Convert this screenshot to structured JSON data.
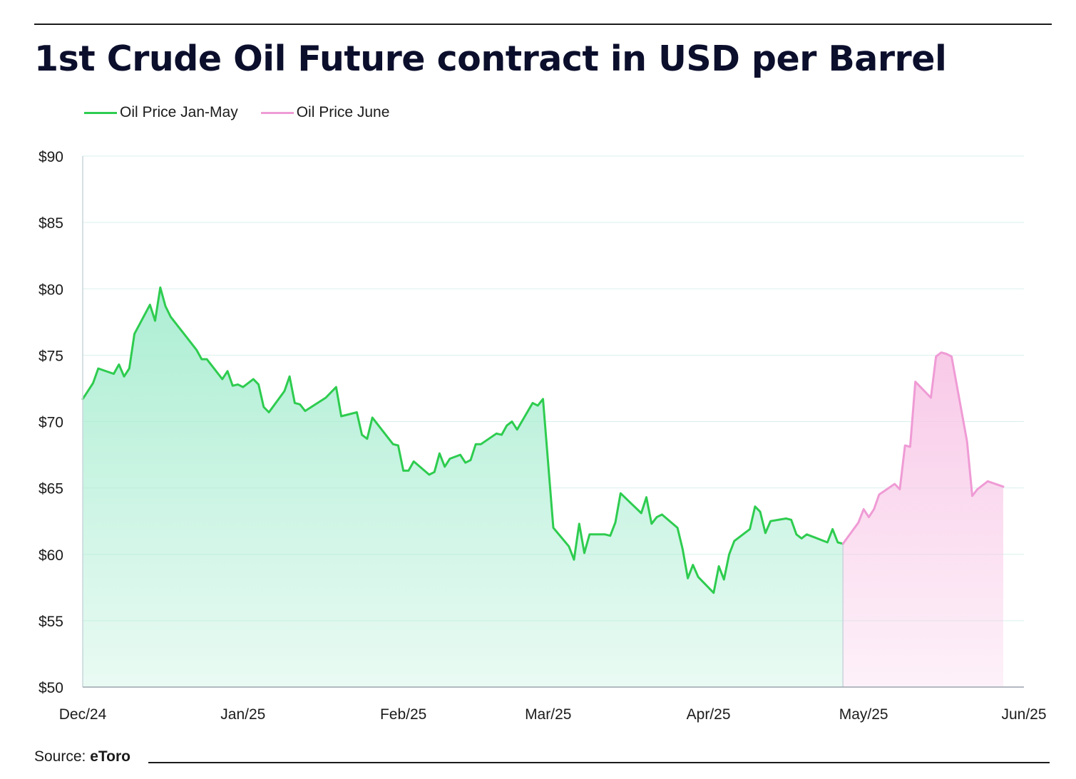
{
  "chart_data": {
    "type": "area",
    "title": "1st Crude Oil Future contract in USD per Barrel",
    "xlabel": "",
    "ylabel": "",
    "ylim": [
      50,
      90
    ],
    "y_ticks": [
      50,
      55,
      60,
      65,
      70,
      75,
      80,
      85,
      90
    ],
    "y_tick_labels": [
      "$50",
      "$55",
      "$60",
      "$65",
      "$70",
      "$75",
      "$80",
      "$85",
      "$90"
    ],
    "x_tick_labels": [
      "Dec/24",
      "Jan/25",
      "Feb/25",
      "Mar/25",
      "Apr/25",
      "May/25",
      "Jun/25"
    ],
    "x_range": [
      "2024-12-01",
      "2025-06-01"
    ],
    "grid": "horizontal",
    "legend_position": "top-left",
    "series": [
      {
        "name": "Oil Price Jan-May",
        "color": "#2ecc4f",
        "fill_color": "#a8edd1",
        "points": [
          [
            "2024-12-01",
            71.7
          ],
          [
            "2024-12-03",
            72.9
          ],
          [
            "2024-12-04",
            74.0
          ],
          [
            "2024-12-07",
            73.6
          ],
          [
            "2024-12-08",
            74.3
          ],
          [
            "2024-12-09",
            73.4
          ],
          [
            "2024-12-10",
            74.0
          ],
          [
            "2024-12-11",
            76.6
          ],
          [
            "2024-12-14",
            78.8
          ],
          [
            "2024-12-15",
            77.6
          ],
          [
            "2024-12-16",
            80.1
          ],
          [
            "2024-12-17",
            78.7
          ],
          [
            "2024-12-18",
            77.9
          ],
          [
            "2024-12-23",
            75.4
          ],
          [
            "2024-12-24",
            74.7
          ],
          [
            "2024-12-25",
            74.7
          ],
          [
            "2024-12-28",
            73.2
          ],
          [
            "2024-12-29",
            73.8
          ],
          [
            "2024-12-30",
            72.7
          ],
          [
            "2024-12-31",
            72.8
          ],
          [
            "2025-01-01",
            72.6
          ],
          [
            "2025-01-03",
            73.2
          ],
          [
            "2025-01-04",
            72.8
          ],
          [
            "2025-01-05",
            71.1
          ],
          [
            "2025-01-06",
            70.7
          ],
          [
            "2025-01-09",
            72.3
          ],
          [
            "2025-01-10",
            73.4
          ],
          [
            "2025-01-11",
            71.4
          ],
          [
            "2025-01-12",
            71.3
          ],
          [
            "2025-01-13",
            70.8
          ],
          [
            "2025-01-17",
            71.8
          ],
          [
            "2025-01-19",
            72.6
          ],
          [
            "2025-01-20",
            70.4
          ],
          [
            "2025-01-23",
            70.7
          ],
          [
            "2025-01-24",
            69.0
          ],
          [
            "2025-01-25",
            68.7
          ],
          [
            "2025-01-26",
            70.3
          ],
          [
            "2025-01-30",
            68.3
          ],
          [
            "2025-01-31",
            68.2
          ],
          [
            "2025-02-01",
            66.3
          ],
          [
            "2025-02-02",
            66.3
          ],
          [
            "2025-02-03",
            67.0
          ],
          [
            "2025-02-06",
            66.0
          ],
          [
            "2025-02-07",
            66.2
          ],
          [
            "2025-02-08",
            67.6
          ],
          [
            "2025-02-09",
            66.6
          ],
          [
            "2025-02-10",
            67.2
          ],
          [
            "2025-02-12",
            67.5
          ],
          [
            "2025-02-13",
            66.9
          ],
          [
            "2025-02-14",
            67.1
          ],
          [
            "2025-02-15",
            68.3
          ],
          [
            "2025-02-16",
            68.3
          ],
          [
            "2025-02-19",
            69.1
          ],
          [
            "2025-02-20",
            69.0
          ],
          [
            "2025-02-21",
            69.7
          ],
          [
            "2025-02-22",
            70.0
          ],
          [
            "2025-02-23",
            69.4
          ],
          [
            "2025-02-26",
            71.4
          ],
          [
            "2025-02-27",
            71.2
          ],
          [
            "2025-02-28",
            71.7
          ],
          [
            "2025-03-02",
            62.0
          ],
          [
            "2025-03-05",
            60.6
          ],
          [
            "2025-03-06",
            59.6
          ],
          [
            "2025-03-07",
            62.3
          ],
          [
            "2025-03-08",
            60.1
          ],
          [
            "2025-03-09",
            61.5
          ],
          [
            "2025-03-12",
            61.5
          ],
          [
            "2025-03-13",
            61.4
          ],
          [
            "2025-03-14",
            62.4
          ],
          [
            "2025-03-15",
            64.6
          ],
          [
            "2025-03-19",
            63.1
          ],
          [
            "2025-03-20",
            64.3
          ],
          [
            "2025-03-21",
            62.3
          ],
          [
            "2025-03-22",
            62.8
          ],
          [
            "2025-03-23",
            63.0
          ],
          [
            "2025-03-26",
            62.0
          ],
          [
            "2025-03-27",
            60.4
          ],
          [
            "2025-03-28",
            58.2
          ],
          [
            "2025-03-29",
            59.2
          ],
          [
            "2025-03-30",
            58.3
          ],
          [
            "2025-04-02",
            57.1
          ],
          [
            "2025-04-03",
            59.1
          ],
          [
            "2025-04-04",
            58.1
          ],
          [
            "2025-04-05",
            60.0
          ],
          [
            "2025-04-06",
            61.0
          ],
          [
            "2025-04-09",
            61.9
          ],
          [
            "2025-04-10",
            63.6
          ],
          [
            "2025-04-11",
            63.2
          ],
          [
            "2025-04-12",
            61.6
          ],
          [
            "2025-04-13",
            62.5
          ],
          [
            "2025-04-16",
            62.7
          ],
          [
            "2025-04-17",
            62.6
          ],
          [
            "2025-04-18",
            61.5
          ],
          [
            "2025-04-19",
            61.2
          ],
          [
            "2025-04-20",
            61.5
          ],
          [
            "2025-04-24",
            60.9
          ],
          [
            "2025-04-25",
            61.9
          ],
          [
            "2025-04-26",
            60.9
          ],
          [
            "2025-04-27",
            60.8
          ]
        ]
      },
      {
        "name": "Oil Price June",
        "color": "#ef9bd5",
        "fill_color": "#f8c7e7",
        "points": [
          [
            "2025-04-27",
            60.8
          ],
          [
            "2025-04-30",
            62.4
          ],
          [
            "2025-05-01",
            63.4
          ],
          [
            "2025-05-02",
            62.8
          ],
          [
            "2025-05-03",
            63.4
          ],
          [
            "2025-05-04",
            64.5
          ],
          [
            "2025-05-07",
            65.3
          ],
          [
            "2025-05-08",
            64.9
          ],
          [
            "2025-05-09",
            68.2
          ],
          [
            "2025-05-10",
            68.1
          ],
          [
            "2025-05-11",
            73.0
          ],
          [
            "2025-05-14",
            71.8
          ],
          [
            "2025-05-15",
            74.9
          ],
          [
            "2025-05-16",
            75.2
          ],
          [
            "2025-05-17",
            75.1
          ],
          [
            "2025-05-18",
            74.9
          ],
          [
            "2025-05-21",
            68.5
          ],
          [
            "2025-05-22",
            64.4
          ],
          [
            "2025-05-23",
            64.9
          ],
          [
            "2025-05-25",
            65.5
          ],
          [
            "2025-05-28",
            65.1
          ]
        ]
      }
    ]
  },
  "footer": {
    "source_label": "Source:",
    "source_value": "eToro"
  }
}
